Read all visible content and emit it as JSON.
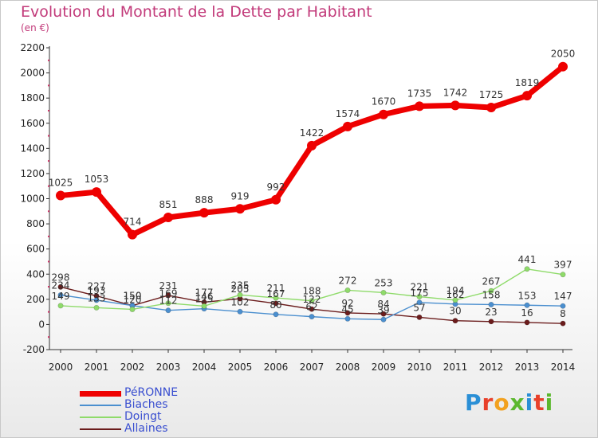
{
  "title": "Evolution du Montant de la Dette par Habitant",
  "subtitle": "(en €)",
  "logo_text": "Proxiti",
  "chart_data": {
    "type": "line",
    "title": "Evolution du Montant de la Dette par Habitant",
    "subtitle": "(en €)",
    "x": [
      2000,
      2001,
      2002,
      2003,
      2004,
      2005,
      2006,
      2007,
      2008,
      2009,
      2010,
      2011,
      2012,
      2013,
      2014
    ],
    "ylim": [
      -200,
      2200
    ],
    "yticks": [
      -200,
      0,
      200,
      400,
      600,
      800,
      1000,
      1200,
      1400,
      1600,
      1800,
      2000,
      2200
    ],
    "grid": false,
    "legend_position": "bottom-left",
    "series": [
      {
        "name": "Allaines",
        "color": "#6b1c1c",
        "values": [
          298,
          227,
          150,
          231,
          177,
          205,
          167,
          122,
          92,
          84,
          57,
          30,
          23,
          16,
          8
        ]
      },
      {
        "name": "Biaches",
        "color": "#4b8fcf",
        "values": [
          234,
          193,
          150,
          112,
          125,
          102,
          80,
          62,
          45,
          39,
          175,
          162,
          158,
          153,
          147
        ]
      },
      {
        "name": "Doingt",
        "color": "#8fdb6a",
        "values": [
          149,
          133,
          120,
          169,
          146,
          235,
          211,
          188,
          272,
          253,
          221,
          194,
          267,
          441,
          397
        ]
      },
      {
        "name": "PéRONNE",
        "color": "#ee0000",
        "values": [
          1025,
          1053,
          714,
          851,
          888,
          919,
          992,
          1422,
          1574,
          1670,
          1735,
          1742,
          1725,
          1819,
          2050
        ]
      }
    ]
  }
}
